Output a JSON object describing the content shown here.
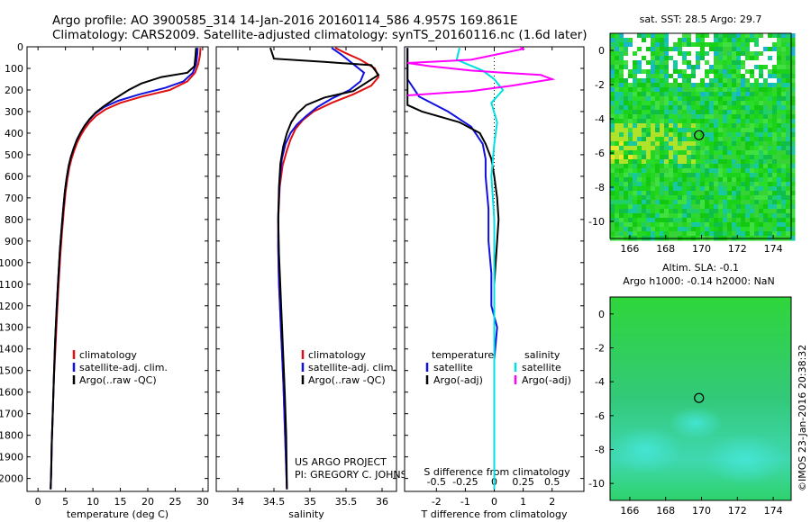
{
  "header": {
    "line1": "Argo profile: AO 3900585_314 14-Jan-2016 20160114_586 4.957S 169.861E",
    "line2": "Climatology: CARS2009. Satellite-adjusted climatology: synTS_20160116.nc (1.6d later)"
  },
  "colors": {
    "climatology": "#e01010",
    "satellite": "#1010e0",
    "argo": "#000000",
    "sal_satellite": "#00e0e0",
    "sal_argo": "#ff00ff"
  },
  "chart_data": [
    {
      "type": "line",
      "xlabel": "temperature (deg C)",
      "xlim": [
        -2,
        31
      ],
      "ylim": [
        2060,
        0
      ],
      "xticks": [
        0,
        5,
        10,
        15,
        20,
        25,
        30
      ],
      "yticks": [
        0,
        100,
        200,
        300,
        400,
        500,
        600,
        700,
        800,
        900,
        1000,
        1100,
        1200,
        1300,
        1400,
        1500,
        1600,
        1700,
        1800,
        1900,
        2000
      ],
      "legend": [
        "climatology",
        "satellite-adj. clim.",
        "Argo(..raw -QC)"
      ],
      "legend_placement": "center",
      "series": [
        {
          "name": "climatology",
          "color": "#e01010",
          "x": [
            29.6,
            29.5,
            29.2,
            28.6,
            27.2,
            24.0,
            19.0,
            15.0,
            12.3,
            10.6,
            9.4,
            8.5,
            7.8,
            7.2,
            6.6,
            6.1,
            5.7,
            5.3,
            5.0,
            4.7,
            4.4,
            4.1,
            3.8,
            3.5,
            3.2,
            2.9,
            2.7,
            2.5,
            2.4,
            2.3
          ],
          "y": [
            5,
            40,
            80,
            120,
            160,
            200,
            230,
            260,
            290,
            320,
            350,
            380,
            410,
            440,
            480,
            520,
            560,
            620,
            680,
            760,
            850,
            950,
            1080,
            1220,
            1380,
            1540,
            1700,
            1850,
            1980,
            2050
          ]
        },
        {
          "name": "satellite-adj. clim.",
          "color": "#1010e0",
          "x": [
            29.1,
            29.0,
            28.8,
            28.2,
            26.5,
            23.2,
            18.5,
            14.6,
            12.0,
            10.4,
            9.3,
            8.4,
            7.7,
            7.1,
            6.5,
            6.0,
            5.6,
            5.2,
            4.9,
            4.6,
            4.3,
            4.0,
            3.7,
            3.4,
            3.1,
            2.9,
            2.7,
            2.5,
            2.4,
            2.3
          ],
          "y": [
            5,
            40,
            80,
            120,
            160,
            190,
            220,
            250,
            280,
            310,
            340,
            370,
            400,
            430,
            470,
            510,
            550,
            610,
            670,
            750,
            840,
            940,
            1070,
            1210,
            1370,
            1530,
            1690,
            1840,
            1970,
            2050
          ]
        },
        {
          "name": "Argo(..raw -QC)",
          "color": "#000000",
          "x": [
            28.8,
            28.7,
            28.5,
            27.2,
            22.5,
            18.8,
            16.5,
            14.0,
            12.0,
            10.5,
            9.4,
            8.5,
            7.8,
            7.1,
            6.5,
            6.0,
            5.6,
            5.2,
            4.9,
            4.6,
            4.3,
            4.0,
            3.7,
            3.4,
            3.1,
            2.9,
            2.7,
            2.5,
            2.4,
            2.3
          ],
          "y": [
            5,
            40,
            90,
            120,
            140,
            170,
            200,
            240,
            275,
            305,
            335,
            365,
            395,
            430,
            470,
            510,
            550,
            610,
            670,
            750,
            840,
            940,
            1070,
            1210,
            1370,
            1530,
            1690,
            1840,
            1970,
            2050
          ]
        }
      ]
    },
    {
      "type": "line",
      "xlabel": "salinity",
      "xlim": [
        33.7,
        36.2
      ],
      "ylim": [
        2060,
        0
      ],
      "xticks": [
        34,
        34.5,
        35,
        35.5,
        36
      ],
      "legend": [
        "climatology",
        "satellite-adj. clim.",
        "Argo(..raw -QC)"
      ],
      "legend_placement": "center",
      "annotations": [
        "US ARGO PROJECT",
        "PI: GREGORY C. JOHNSON"
      ],
      "series": [
        {
          "name": "climatology",
          "color": "#e01010",
          "x": [
            35.35,
            35.5,
            35.7,
            35.9,
            35.95,
            35.85,
            35.6,
            35.3,
            35.05,
            34.9,
            34.8,
            34.73,
            34.68,
            34.62,
            34.58,
            34.56,
            34.56,
            34.57,
            34.59,
            34.61,
            34.63,
            34.65,
            34.67,
            34.68
          ],
          "y": [
            5,
            30,
            60,
            100,
            140,
            180,
            220,
            260,
            300,
            340,
            380,
            430,
            480,
            550,
            650,
            800,
            950,
            1100,
            1250,
            1400,
            1550,
            1750,
            1950,
            2050
          ]
        },
        {
          "name": "satellite-adj. clim.",
          "color": "#1010e0",
          "x": [
            35.3,
            35.45,
            35.6,
            35.75,
            35.7,
            35.55,
            35.3,
            35.1,
            34.95,
            34.82,
            34.73,
            34.66,
            34.61,
            34.58,
            34.56,
            34.56,
            34.57,
            34.59,
            34.61,
            34.63,
            34.65,
            34.67,
            34.68
          ],
          "y": [
            5,
            40,
            80,
            120,
            160,
            200,
            240,
            280,
            320,
            360,
            400,
            450,
            520,
            620,
            770,
            930,
            1090,
            1250,
            1400,
            1550,
            1750,
            1950,
            2050
          ]
        },
        {
          "name": "Argo(..raw -QC)",
          "color": "#000000",
          "x": [
            34.45,
            34.5,
            35.2,
            35.85,
            35.95,
            35.6,
            35.2,
            34.95,
            34.82,
            34.74,
            34.68,
            34.63,
            34.59,
            34.57,
            34.56,
            34.57,
            34.59,
            34.61,
            34.63,
            34.65,
            34.67,
            34.68
          ],
          "y": [
            5,
            55,
            70,
            85,
            130,
            205,
            235,
            270,
            310,
            350,
            400,
            460,
            540,
            650,
            800,
            960,
            1120,
            1280,
            1440,
            1600,
            1800,
            2050
          ]
        }
      ]
    },
    {
      "type": "line",
      "xlabel": "T difference from climatology",
      "xlabel_top": "S difference from climatology",
      "xlim": [
        -3.1,
        3.1
      ],
      "ylim": [
        2060,
        0
      ],
      "xticks": [
        -2,
        -1,
        0,
        1,
        2
      ],
      "xticks_top": [
        "-0.5",
        "-0.25",
        "0",
        "0.25",
        "0.5"
      ],
      "legend": [
        "temperature",
        "satellite",
        "Argo(-adj)",
        "salinity",
        "satellite",
        "Argo(-adj)"
      ],
      "legend_placement": "center",
      "series": [
        {
          "name": "satellite",
          "color": "#1010e0",
          "x": [
            -3.0,
            -3.0,
            -2.6,
            -1.6,
            -0.8,
            -0.4,
            -0.3,
            -0.3,
            -0.2,
            -0.2,
            -0.1,
            -0.1,
            0.1,
            0.0,
            0.0,
            0.0
          ],
          "y": [
            5,
            150,
            230,
            300,
            370,
            450,
            520,
            600,
            750,
            900,
            1050,
            1200,
            1300,
            1450,
            1700,
            2050
          ]
        },
        {
          "name": "Argo(-adj)",
          "color": "#000000",
          "x": [
            -3.0,
            -3.0,
            -2.5,
            -1.2,
            -0.5,
            -0.3,
            -0.1,
            0.0,
            0.1,
            0.15,
            0.1,
            0.05,
            0.0,
            0.0
          ],
          "y": [
            5,
            270,
            300,
            350,
            400,
            450,
            520,
            600,
            700,
            800,
            900,
            1000,
            1100,
            2050
          ]
        },
        {
          "name": "satellite",
          "color": "#00e0e0",
          "x": [
            -1.2,
            -1.3,
            -0.4,
            0.0,
            0.3,
            -0.1,
            0.1,
            0.0,
            -0.1,
            0.0,
            0.0,
            0.0,
            0.0
          ],
          "y": [
            5,
            60,
            110,
            150,
            200,
            260,
            350,
            450,
            600,
            800,
            1100,
            1500,
            2050
          ]
        },
        {
          "name": "Argo(-adj)",
          "color": "#ff00ff",
          "x": [
            0.9,
            1.0,
            -0.8,
            -3.0,
            -2.2,
            -0.8,
            0.3,
            1.6,
            2.0,
            0.6,
            -0.8,
            -3.0
          ],
          "y": [
            0,
            10,
            60,
            75,
            90,
            110,
            120,
            130,
            150,
            180,
            205,
            225
          ]
        }
      ]
    },
    {
      "type": "heatmap",
      "title": "sat. SST: 28.5 Argo: 29.7",
      "xlim": [
        164.9,
        175.0
      ],
      "ylim": [
        -11.0,
        1.0
      ],
      "xticks": [
        166,
        168,
        170,
        172,
        174
      ],
      "yticks": [
        0,
        -2,
        -4,
        -6,
        -8,
        -10
      ],
      "marker": {
        "x": 169.861,
        "y": -4.957
      }
    },
    {
      "type": "heatmap",
      "title": "Altim. SLA: -0.1",
      "subtitle": "Argo h1000: -0.14 h2000: NaN",
      "xlim": [
        164.9,
        175.0
      ],
      "ylim": [
        -11.0,
        1.0
      ],
      "xticks": [
        166,
        168,
        170,
        172,
        174
      ],
      "yticks": [
        0,
        -2,
        -4,
        -6,
        -8,
        -10
      ],
      "marker": {
        "x": 169.861,
        "y": -4.957
      }
    }
  ],
  "copyright": "©IMOS 23-Jan-2016 20:38:32"
}
